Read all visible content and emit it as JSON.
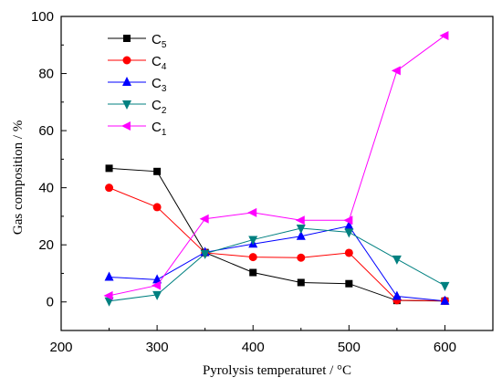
{
  "chart_data": {
    "type": "line",
    "xlabel": "Pyrolysis temperaturet / °C",
    "ylabel": "Gas composition / %",
    "xlim": [
      200,
      650
    ],
    "ylim": [
      -10,
      100
    ],
    "x_ticks": [
      200,
      300,
      400,
      500,
      600
    ],
    "y_ticks": [
      0,
      20,
      40,
      60,
      80,
      100
    ],
    "legend_position": "top-left",
    "x": [
      250,
      300,
      350,
      400,
      450,
      500,
      550,
      600
    ],
    "series": [
      {
        "key": "c5",
        "name_main": "C",
        "name_sub": "5",
        "color": "#000000",
        "marker": "square",
        "values": [
          46.8,
          45.7,
          17.3,
          10.3,
          6.8,
          6.4,
          0.5,
          0.3
        ]
      },
      {
        "key": "c4",
        "name_main": "C",
        "name_sub": "4",
        "color": "#ff0000",
        "marker": "circle",
        "values": [
          40.0,
          33.2,
          17.2,
          15.7,
          15.5,
          17.2,
          0.6,
          0.4
        ]
      },
      {
        "key": "c3",
        "name_main": "C",
        "name_sub": "3",
        "color": "#0000ff",
        "marker": "triangle-up",
        "values": [
          8.7,
          7.8,
          17.4,
          20.3,
          23.0,
          26.6,
          2.0,
          0.3
        ]
      },
      {
        "key": "c2",
        "name_main": "C",
        "name_sub": "2",
        "color": "#008080",
        "marker": "triangle-down",
        "values": [
          0.3,
          2.5,
          16.9,
          21.8,
          25.8,
          24.4,
          15.0,
          5.7
        ]
      },
      {
        "key": "c1",
        "name_main": "C",
        "name_sub": "1",
        "color": "#ff00ff",
        "marker": "triangle-left",
        "values": [
          2.2,
          5.8,
          29.1,
          31.3,
          28.6,
          28.6,
          81.0,
          93.3
        ]
      }
    ]
  }
}
